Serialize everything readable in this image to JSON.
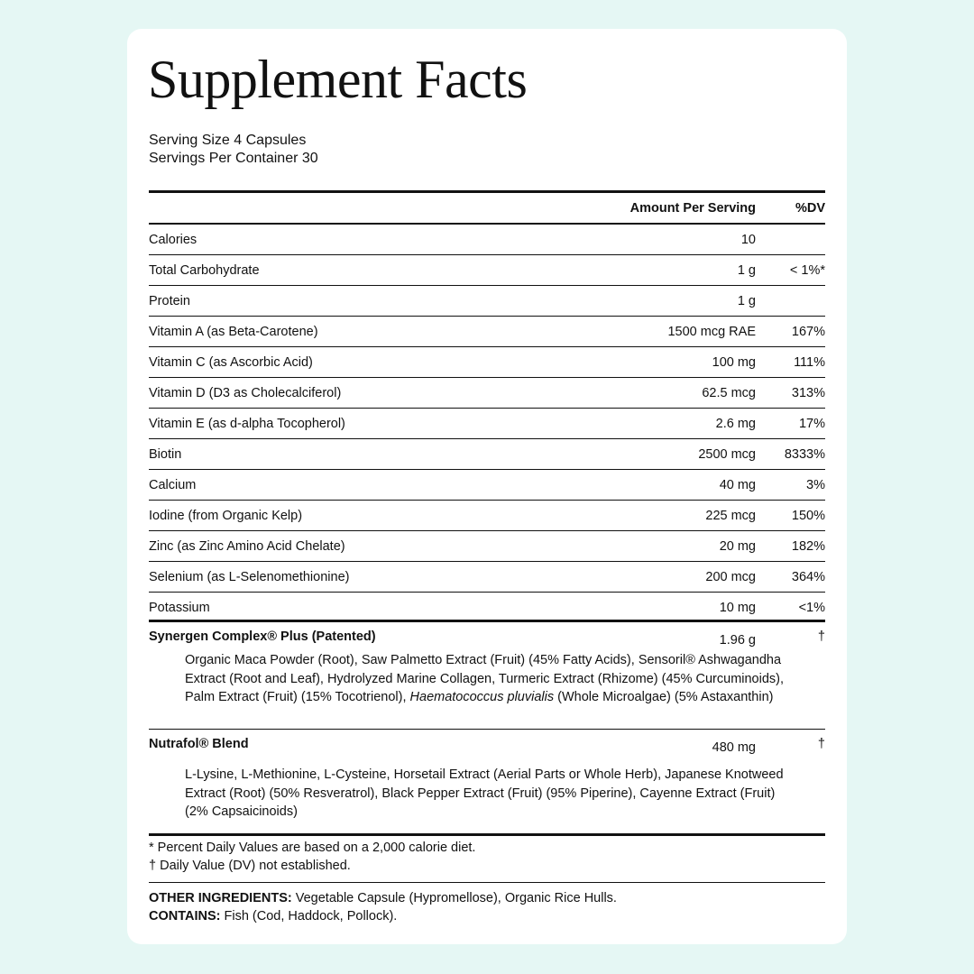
{
  "title": "Supplement Facts",
  "serving_size": "Serving Size 4 Capsules",
  "servings_per_container": "Servings Per Container 30",
  "table": {
    "header": {
      "amount": "Amount Per Serving",
      "dv": "%DV"
    },
    "rows": [
      {
        "name": "Calories",
        "amount": "10",
        "dv": ""
      },
      {
        "name": "Total Carbohydrate",
        "amount": "1 g",
        "dv": "< 1%*"
      },
      {
        "name": "Protein",
        "amount": "1 g",
        "dv": ""
      },
      {
        "name": "Vitamin A (as Beta-Carotene)",
        "amount": "1500 mcg RAE",
        "dv": "167%"
      },
      {
        "name": "Vitamin C (as Ascorbic Acid)",
        "amount": "100 mg",
        "dv": "111%"
      },
      {
        "name": "Vitamin D (D3 as Cholecalciferol)",
        "amount": "62.5 mcg",
        "dv": "313%"
      },
      {
        "name": "Vitamin E (as d-alpha Tocopherol)",
        "amount": "2.6 mg",
        "dv": "17%"
      },
      {
        "name": "Biotin",
        "amount": "2500 mcg",
        "dv": "8333%"
      },
      {
        "name": "Calcium",
        "amount": "40 mg",
        "dv": "3%"
      },
      {
        "name": "Iodine (from Organic Kelp)",
        "amount": "225 mcg",
        "dv": "150%"
      },
      {
        "name": "Zinc (as Zinc Amino Acid Chelate)",
        "amount": "20 mg",
        "dv": "182%"
      },
      {
        "name": "Selenium (as L-Selenomethionine)",
        "amount": "200 mcg",
        "dv": "364%"
      },
      {
        "name": "Potassium",
        "amount": "10 mg",
        "dv": "<1%"
      }
    ]
  },
  "blends": [
    {
      "name": "Synergen Complex® Plus (Patented)",
      "amount": "1.96 g",
      "dv": "†",
      "ingredients_before_italic": "Organic Maca Powder (Root), Saw Palmetto Extract (Fruit) (45% Fatty Acids), Sensoril® Ashwagandha Extract (Root and Leaf), Hydrolyzed Marine Collagen, Turmeric Extract (Rhizome) (45% Curcuminoids), Palm Extract (Fruit) (15% Tocotrienol), ",
      "ingredients_italic": "Haematococcus pluvialis",
      "ingredients_after_italic": " (Whole Microalgae) (5% Astaxanthin)"
    },
    {
      "name": "Nutrafol® Blend",
      "amount": "480 mg",
      "dv": "†",
      "ingredients": "L-Lysine, L-Methionine, L-Cysteine, Horsetail Extract (Aerial Parts or Whole Herb), Japanese Knotweed Extract (Root) (50% Resveratrol), Black Pepper Extract (Fruit) (95% Piperine), Cayenne Extract (Fruit) (2% Capsaicinoids)"
    }
  ],
  "footnotes": [
    "* Percent Daily Values are based on a 2,000 calorie diet.",
    "† Daily Value (DV) not established."
  ],
  "other_ingredients": {
    "label": "OTHER INGREDIENTS:",
    "text": " Vegetable Capsule (Hypromellose), Organic Rice Hulls."
  },
  "contains": {
    "label": "CONTAINS:",
    "text": " Fish (Cod, Haddock, Pollock)."
  },
  "colors": {
    "background": "#e5f7f4",
    "card": "#ffffff",
    "text": "#111111"
  }
}
